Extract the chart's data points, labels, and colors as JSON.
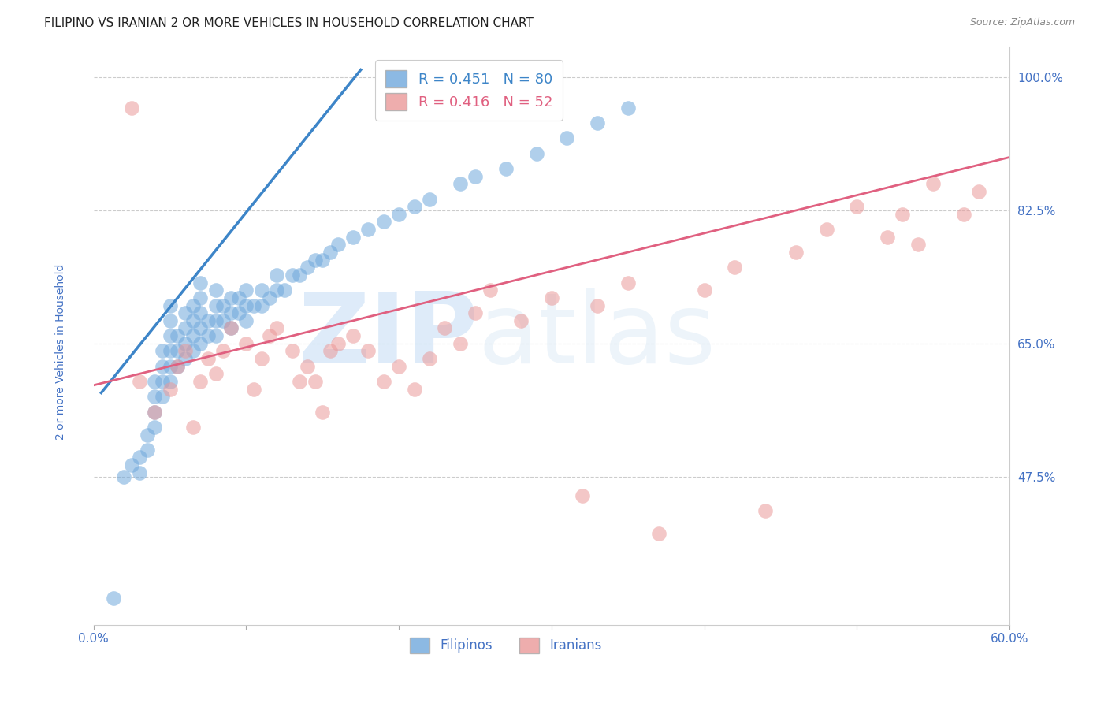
{
  "title": "FILIPINO VS IRANIAN 2 OR MORE VEHICLES IN HOUSEHOLD CORRELATION CHART",
  "source": "Source: ZipAtlas.com",
  "ylabel": "2 or more Vehicles in Household",
  "xlim": [
    0.0,
    0.6
  ],
  "ylim": [
    0.28,
    1.04
  ],
  "xticks": [
    0.0,
    0.1,
    0.2,
    0.3,
    0.4,
    0.5,
    0.6
  ],
  "xticklabels": [
    "0.0%",
    "",
    "",
    "",
    "",
    "",
    "60.0%"
  ],
  "yticks": [
    0.475,
    0.65,
    0.825,
    1.0
  ],
  "yticklabels": [
    "47.5%",
    "65.0%",
    "82.5%",
    "100.0%"
  ],
  "filipino_R": 0.451,
  "filipino_N": 80,
  "iranian_R": 0.416,
  "iranian_N": 52,
  "filipino_color": "#6fa8dc",
  "iranian_color": "#ea9999",
  "filipino_line_color": "#3d85c8",
  "iranian_line_color": "#e06080",
  "watermark_left": "ZIP",
  "watermark_right": "atlas",
  "background_color": "#ffffff",
  "grid_color": "#cccccc",
  "tick_label_color": "#4472c4",
  "filipino_x": [
    0.013,
    0.02,
    0.025,
    0.03,
    0.03,
    0.035,
    0.035,
    0.04,
    0.04,
    0.04,
    0.04,
    0.045,
    0.045,
    0.045,
    0.045,
    0.05,
    0.05,
    0.05,
    0.05,
    0.05,
    0.05,
    0.055,
    0.055,
    0.055,
    0.06,
    0.06,
    0.06,
    0.06,
    0.065,
    0.065,
    0.065,
    0.065,
    0.07,
    0.07,
    0.07,
    0.07,
    0.07,
    0.075,
    0.075,
    0.08,
    0.08,
    0.08,
    0.08,
    0.085,
    0.085,
    0.09,
    0.09,
    0.09,
    0.095,
    0.095,
    0.1,
    0.1,
    0.1,
    0.105,
    0.11,
    0.11,
    0.115,
    0.12,
    0.12,
    0.125,
    0.13,
    0.135,
    0.14,
    0.145,
    0.15,
    0.155,
    0.16,
    0.17,
    0.18,
    0.19,
    0.2,
    0.21,
    0.22,
    0.24,
    0.25,
    0.27,
    0.29,
    0.31,
    0.33,
    0.35
  ],
  "filipino_y": [
    0.315,
    0.475,
    0.49,
    0.5,
    0.48,
    0.51,
    0.53,
    0.54,
    0.56,
    0.58,
    0.6,
    0.58,
    0.6,
    0.62,
    0.64,
    0.6,
    0.62,
    0.64,
    0.66,
    0.68,
    0.7,
    0.62,
    0.64,
    0.66,
    0.63,
    0.65,
    0.67,
    0.69,
    0.64,
    0.66,
    0.68,
    0.7,
    0.65,
    0.67,
    0.69,
    0.71,
    0.73,
    0.66,
    0.68,
    0.66,
    0.68,
    0.7,
    0.72,
    0.68,
    0.7,
    0.67,
    0.69,
    0.71,
    0.69,
    0.71,
    0.68,
    0.7,
    0.72,
    0.7,
    0.7,
    0.72,
    0.71,
    0.72,
    0.74,
    0.72,
    0.74,
    0.74,
    0.75,
    0.76,
    0.76,
    0.77,
    0.78,
    0.79,
    0.8,
    0.81,
    0.82,
    0.83,
    0.84,
    0.86,
    0.87,
    0.88,
    0.9,
    0.92,
    0.94,
    0.96
  ],
  "iranian_x": [
    0.025,
    0.03,
    0.04,
    0.05,
    0.055,
    0.06,
    0.065,
    0.07,
    0.075,
    0.08,
    0.085,
    0.09,
    0.1,
    0.105,
    0.11,
    0.115,
    0.12,
    0.13,
    0.135,
    0.14,
    0.145,
    0.15,
    0.155,
    0.16,
    0.17,
    0.18,
    0.19,
    0.2,
    0.21,
    0.22,
    0.23,
    0.24,
    0.25,
    0.26,
    0.28,
    0.3,
    0.32,
    0.33,
    0.35,
    0.37,
    0.4,
    0.42,
    0.44,
    0.46,
    0.48,
    0.5,
    0.52,
    0.53,
    0.54,
    0.55,
    0.57,
    0.58
  ],
  "iranian_y": [
    0.96,
    0.6,
    0.56,
    0.59,
    0.62,
    0.64,
    0.54,
    0.6,
    0.63,
    0.61,
    0.64,
    0.67,
    0.65,
    0.59,
    0.63,
    0.66,
    0.67,
    0.64,
    0.6,
    0.62,
    0.6,
    0.56,
    0.64,
    0.65,
    0.66,
    0.64,
    0.6,
    0.62,
    0.59,
    0.63,
    0.67,
    0.65,
    0.69,
    0.72,
    0.68,
    0.71,
    0.45,
    0.7,
    0.73,
    0.4,
    0.72,
    0.75,
    0.43,
    0.77,
    0.8,
    0.83,
    0.79,
    0.82,
    0.78,
    0.86,
    0.82,
    0.85
  ],
  "filipino_line_x": [
    0.005,
    0.175
  ],
  "filipino_line_y": [
    0.585,
    1.01
  ],
  "iranian_line_x": [
    0.0,
    0.6
  ],
  "iranian_line_y": [
    0.595,
    0.895
  ],
  "title_fontsize": 11,
  "axis_fontsize": 10,
  "tick_fontsize": 11,
  "legend_fontsize": 13
}
